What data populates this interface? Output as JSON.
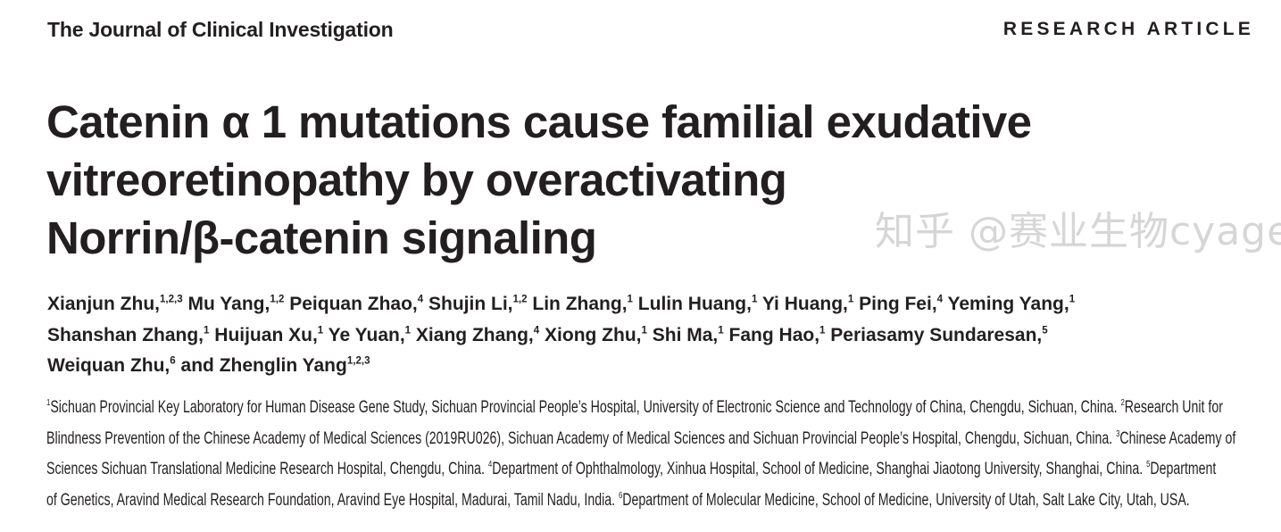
{
  "header": {
    "journal": "The Journal of Clinical Investigation",
    "article_type": "RESEARCH ARTICLE"
  },
  "title_lines": [
    "Catenin α 1 mutations cause familial exudative",
    "vitreoretinopathy by overactivating",
    "Norrin/β-catenin signaling"
  ],
  "author_lines": [
    [
      {
        "name": "Xianjun Zhu,",
        "sup": "1,2,3"
      },
      {
        "name": " Mu Yang,",
        "sup": "1,2"
      },
      {
        "name": " Peiquan Zhao,",
        "sup": "4"
      },
      {
        "name": " Shujin Li,",
        "sup": "1,2"
      },
      {
        "name": " Lin Zhang,",
        "sup": "1"
      },
      {
        "name": " Lulin Huang,",
        "sup": "1"
      },
      {
        "name": " Yi Huang,",
        "sup": "1"
      },
      {
        "name": " Ping Fei,",
        "sup": "4"
      },
      {
        "name": " Yeming Yang,",
        "sup": "1"
      }
    ],
    [
      {
        "name": "Shanshan Zhang,",
        "sup": "1"
      },
      {
        "name": " Huijuan Xu,",
        "sup": "1"
      },
      {
        "name": " Ye Yuan,",
        "sup": "1"
      },
      {
        "name": " Xiang Zhang,",
        "sup": "4"
      },
      {
        "name": " Xiong Zhu,",
        "sup": "1"
      },
      {
        "name": " Shi Ma,",
        "sup": "1"
      },
      {
        "name": " Fang Hao,",
        "sup": "1"
      },
      {
        "name": " Periasamy Sundaresan,",
        "sup": "5"
      }
    ],
    [
      {
        "name": "Weiquan Zhu,",
        "sup": "6"
      },
      {
        "name": " and Zhenglin Yang",
        "sup": "1,2,3"
      }
    ]
  ],
  "affiliation_lines": [
    [
      {
        "sup": "1",
        "text": "Sichuan Provincial Key Laboratory for Human Disease Gene Study, Sichuan Provincial People’s Hospital, University of Electronic Science and Technology of China, Chengdu, Sichuan, China. "
      },
      {
        "sup": "2",
        "text": "Research Unit for"
      }
    ],
    [
      {
        "sup": "",
        "text": "Blindness Prevention of the Chinese Academy of Medical Sciences (2019RU026), Sichuan Academy of Medical Sciences and Sichuan Provincial People’s Hospital, Chengdu, Sichuan, China. "
      },
      {
        "sup": "3",
        "text": "Chinese Academy of"
      }
    ],
    [
      {
        "sup": "",
        "text": "Sciences Sichuan Translational Medicine Research Hospital, Chengdu, China. "
      },
      {
        "sup": "4",
        "text": "Department of Ophthalmology, Xinhua Hospital, School of Medicine, Shanghai Jiaotong University, Shanghai, China. "
      },
      {
        "sup": "5",
        "text": "Department"
      }
    ],
    [
      {
        "sup": "",
        "text": "of Genetics, Aravind Medical Research Foundation, Aravind Eye Hospital, Madurai, Tamil Nadu, India. "
      },
      {
        "sup": "6",
        "text": "Department of Molecular Medicine, School of Medicine, University of Utah, Salt Lake City, Utah, USA."
      }
    ]
  ],
  "watermark": "知乎 @赛业生物cyagen"
}
